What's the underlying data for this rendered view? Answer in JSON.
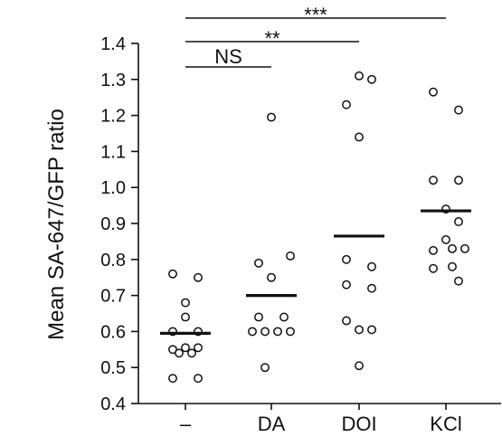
{
  "chart_data": {
    "type": "scatter",
    "ylabel": "Mean SA-647/GFP ratio",
    "ylim": [
      0.4,
      1.4
    ],
    "yticks": [
      "0.4",
      "0.5",
      "0.6",
      "0.7",
      "0.8",
      "0.9",
      "1.0",
      "1.1",
      "1.2",
      "1.3",
      "1.4"
    ],
    "categories": [
      "–",
      "DA",
      "DOI",
      "KCl"
    ],
    "groups": [
      {
        "category": "–",
        "mean": 0.595,
        "points": [
          {
            "offset": -0.5,
            "y": 0.76
          },
          {
            "offset": 0.5,
            "y": 0.75
          },
          {
            "offset": 0.0,
            "y": 0.68
          },
          {
            "offset": 0.0,
            "y": 0.64
          },
          {
            "offset": -0.5,
            "y": 0.6
          },
          {
            "offset": 0.5,
            "y": 0.6
          },
          {
            "offset": -0.5,
            "y": 0.55
          },
          {
            "offset": 0.0,
            "y": 0.555
          },
          {
            "offset": 0.5,
            "y": 0.555
          },
          {
            "offset": -0.25,
            "y": 0.54
          },
          {
            "offset": 0.25,
            "y": 0.54
          },
          {
            "offset": -0.5,
            "y": 0.47
          },
          {
            "offset": 0.5,
            "y": 0.47
          }
        ]
      },
      {
        "category": "DA",
        "mean": 0.7,
        "points": [
          {
            "offset": 0.0,
            "y": 1.195
          },
          {
            "offset": 0.75,
            "y": 0.81
          },
          {
            "offset": -0.5,
            "y": 0.79
          },
          {
            "offset": 0.0,
            "y": 0.75
          },
          {
            "offset": -0.5,
            "y": 0.64
          },
          {
            "offset": 0.5,
            "y": 0.64
          },
          {
            "offset": -0.75,
            "y": 0.6
          },
          {
            "offset": -0.25,
            "y": 0.6
          },
          {
            "offset": 0.25,
            "y": 0.6
          },
          {
            "offset": 0.75,
            "y": 0.6
          },
          {
            "offset": -0.25,
            "y": 0.5
          }
        ]
      },
      {
        "category": "DOI",
        "mean": 0.865,
        "points": [
          {
            "offset": 0.0,
            "y": 1.31
          },
          {
            "offset": 0.5,
            "y": 1.3
          },
          {
            "offset": -0.5,
            "y": 1.23
          },
          {
            "offset": 0.0,
            "y": 1.14
          },
          {
            "offset": -0.5,
            "y": 0.8
          },
          {
            "offset": 0.5,
            "y": 0.78
          },
          {
            "offset": -0.5,
            "y": 0.73
          },
          {
            "offset": 0.5,
            "y": 0.72
          },
          {
            "offset": -0.5,
            "y": 0.63
          },
          {
            "offset": 0.0,
            "y": 0.605
          },
          {
            "offset": 0.5,
            "y": 0.605
          },
          {
            "offset": 0.0,
            "y": 0.505
          }
        ]
      },
      {
        "category": "KCl",
        "mean": 0.935,
        "points": [
          {
            "offset": -0.5,
            "y": 1.265
          },
          {
            "offset": 0.5,
            "y": 1.215
          },
          {
            "offset": -0.5,
            "y": 1.02
          },
          {
            "offset": 0.5,
            "y": 1.02
          },
          {
            "offset": 0.0,
            "y": 0.94
          },
          {
            "offset": 0.5,
            "y": 0.905
          },
          {
            "offset": 0.0,
            "y": 0.855
          },
          {
            "offset": -0.5,
            "y": 0.825
          },
          {
            "offset": 0.25,
            "y": 0.83
          },
          {
            "offset": 0.75,
            "y": 0.83
          },
          {
            "offset": -0.5,
            "y": 0.775
          },
          {
            "offset": 0.25,
            "y": 0.78
          },
          {
            "offset": 0.5,
            "y": 0.74
          }
        ]
      }
    ],
    "significance": [
      {
        "label": "NS",
        "from": "–",
        "to": "DA"
      },
      {
        "label": "**",
        "from": "–",
        "to": "DOI"
      },
      {
        "label": "***",
        "from": "–",
        "to": "KCl"
      }
    ],
    "grid": false,
    "legend": "none"
  }
}
